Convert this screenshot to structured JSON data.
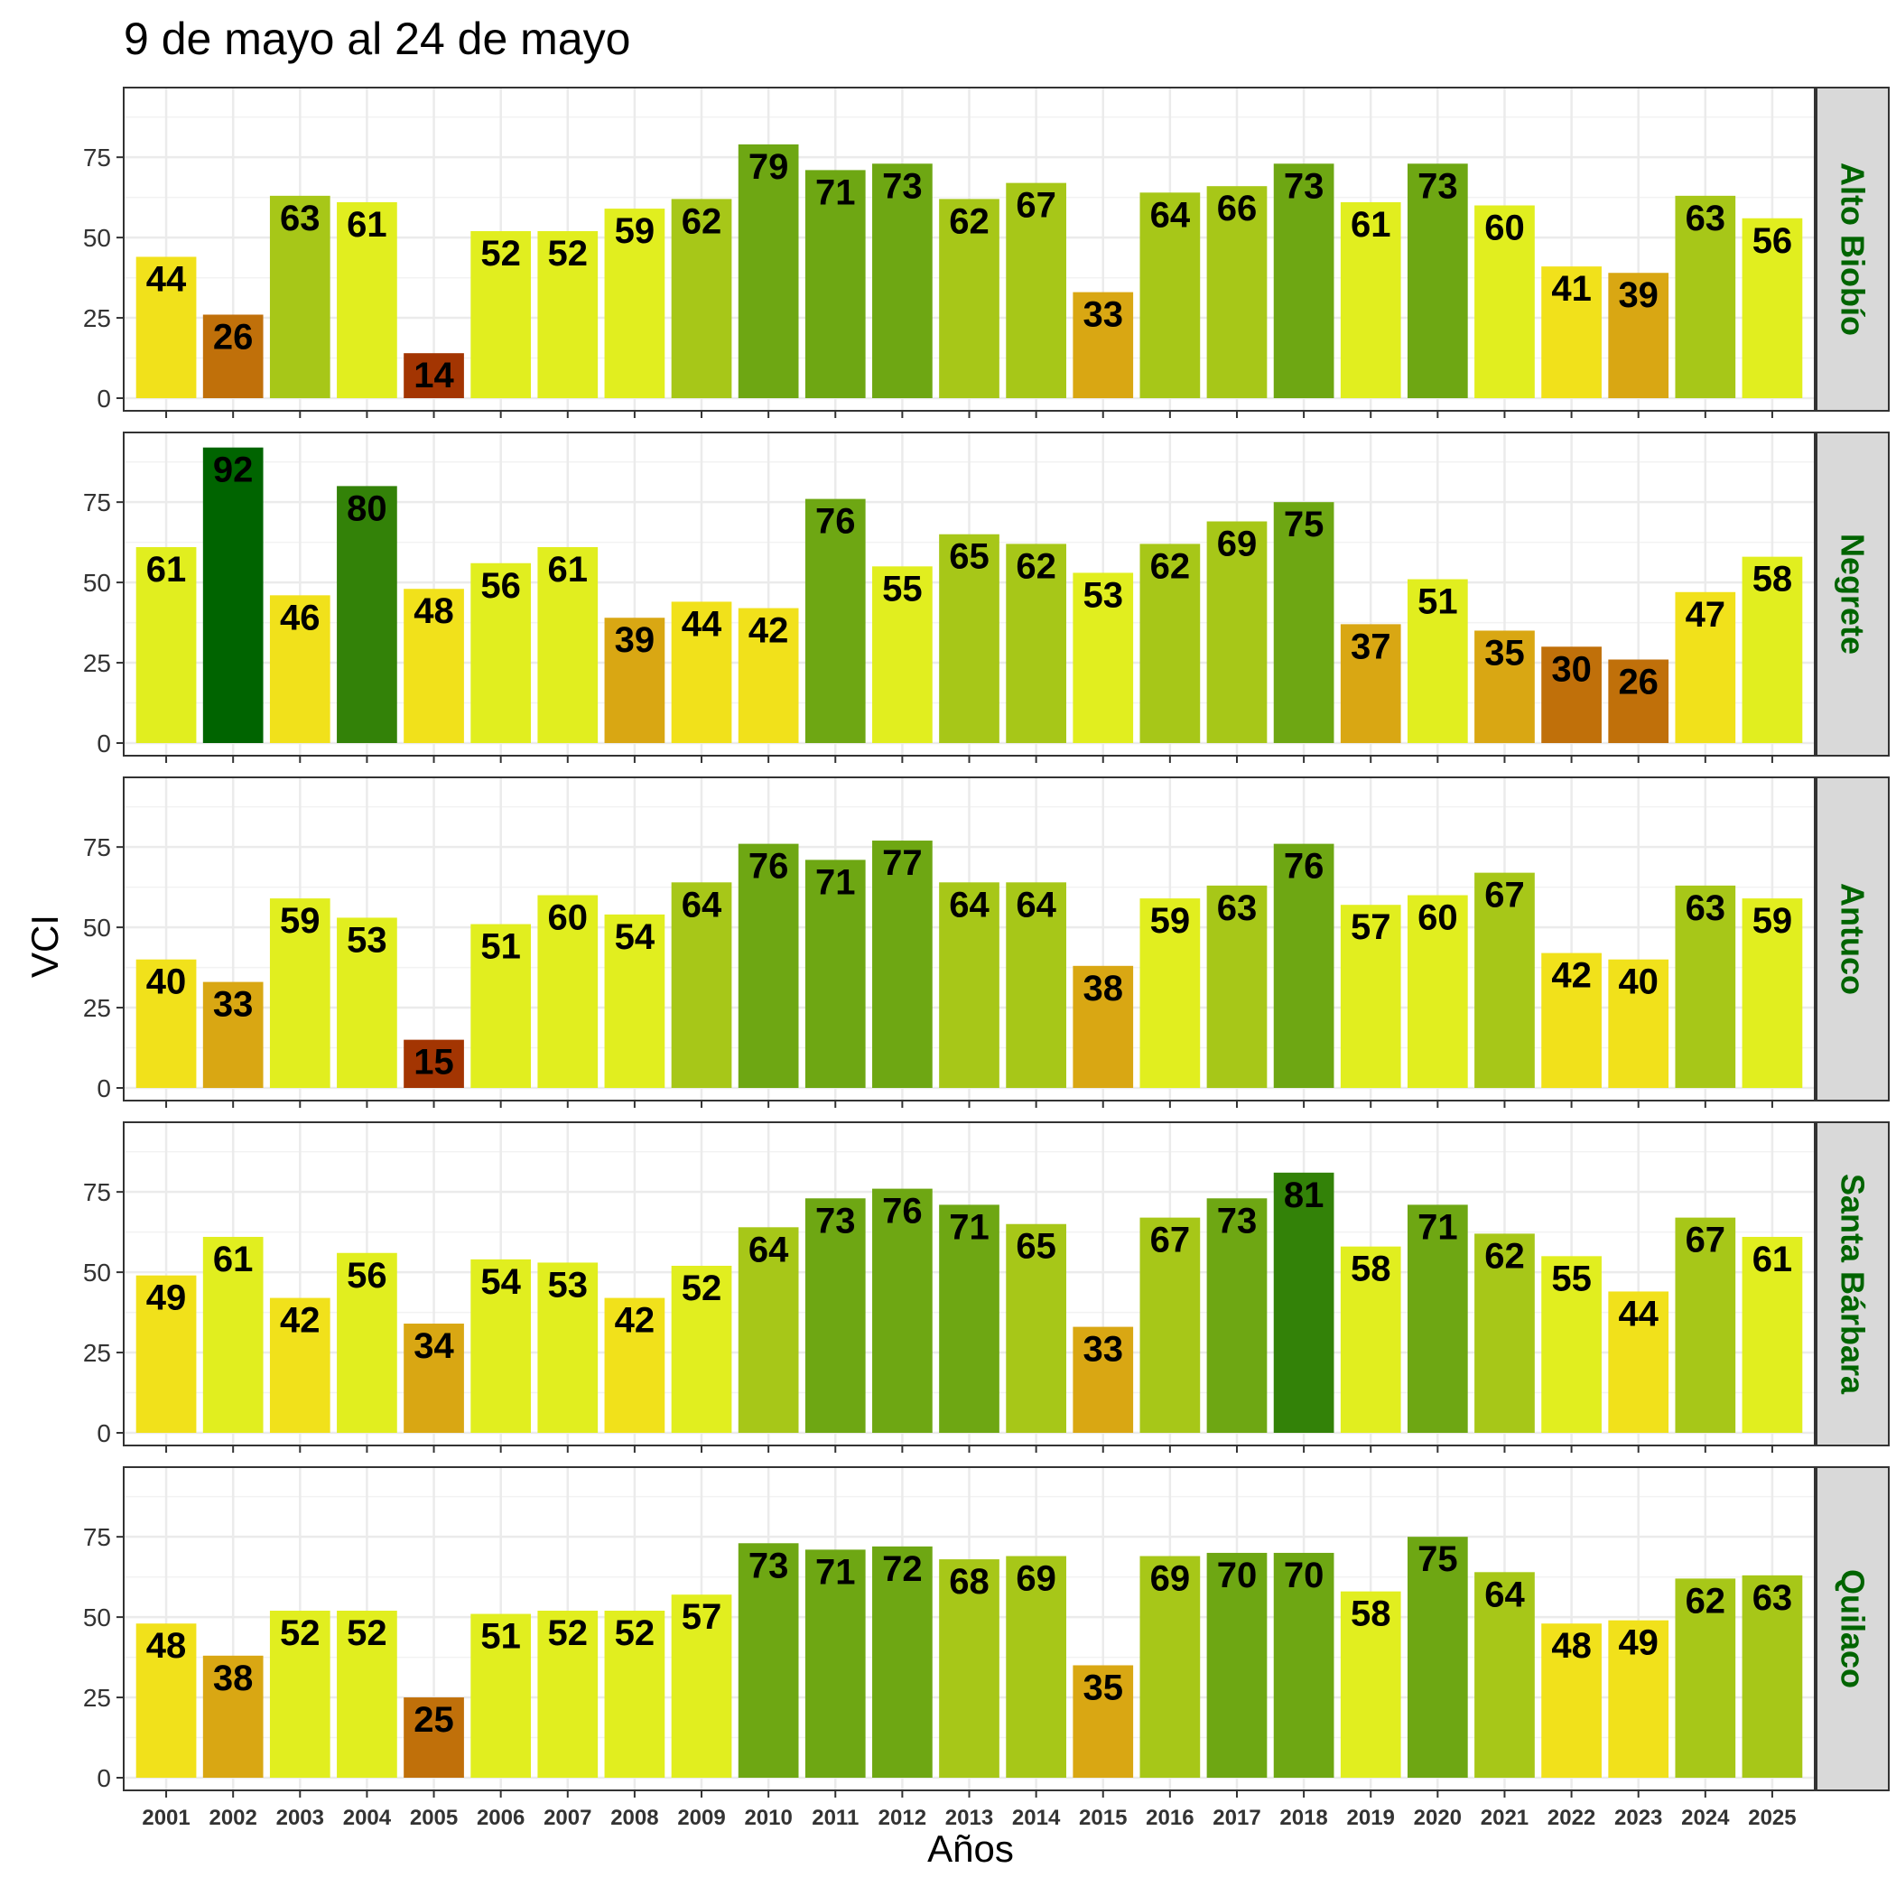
{
  "chart_data": {
    "type": "bar",
    "title": "9 de mayo al 24 de mayo",
    "xlabel": "Años",
    "ylabel": "VCI",
    "ylim": [
      0,
      95
    ],
    "y_ticks": [
      "0",
      "25",
      "50",
      "75"
    ],
    "grid": true,
    "facet_layout": "rows",
    "categories": [
      "2001",
      "2002",
      "2003",
      "2004",
      "2005",
      "2006",
      "2007",
      "2008",
      "2009",
      "2010",
      "2011",
      "2012",
      "2013",
      "2014",
      "2015",
      "2016",
      "2017",
      "2018",
      "2019",
      "2020",
      "2021",
      "2022",
      "2023",
      "2024",
      "2025"
    ],
    "color_scale": [
      {
        "min": 0,
        "color": "#a33502"
      },
      {
        "min": 20,
        "color": "#c0700a"
      },
      {
        "min": 32,
        "color": "#d9a713"
      },
      {
        "min": 40,
        "color": "#f1e11b"
      },
      {
        "min": 50,
        "color": "#e1ee1f"
      },
      {
        "min": 62,
        "color": "#a7c718"
      },
      {
        "min": 70,
        "color": "#6ea713"
      },
      {
        "min": 80,
        "color": "#338208"
      },
      {
        "min": 85,
        "color": "#006400"
      }
    ],
    "series": [
      {
        "name": "Alto Biobío",
        "values": [
          44,
          26,
          63,
          61,
          14,
          52,
          52,
          59,
          62,
          79,
          71,
          73,
          62,
          67,
          33,
          64,
          66,
          73,
          61,
          73,
          60,
          41,
          39,
          63,
          56
        ]
      },
      {
        "name": "Negrete",
        "values": [
          61,
          92,
          46,
          80,
          48,
          56,
          61,
          39,
          44,
          42,
          76,
          55,
          65,
          62,
          53,
          62,
          69,
          75,
          37,
          51,
          35,
          30,
          26,
          47,
          58
        ]
      },
      {
        "name": "Antuco",
        "values": [
          40,
          33,
          59,
          53,
          15,
          51,
          60,
          54,
          64,
          76,
          71,
          77,
          64,
          64,
          38,
          59,
          63,
          76,
          57,
          60,
          67,
          42,
          40,
          63,
          59
        ]
      },
      {
        "name": "Santa Bárbara",
        "values": [
          49,
          61,
          42,
          56,
          34,
          54,
          53,
          42,
          52,
          64,
          73,
          76,
          71,
          65,
          33,
          67,
          73,
          81,
          58,
          71,
          62,
          55,
          44,
          67,
          61
        ]
      },
      {
        "name": "Quilaco",
        "values": [
          48,
          38,
          52,
          52,
          25,
          51,
          52,
          52,
          57,
          73,
          71,
          72,
          68,
          69,
          35,
          69,
          70,
          70,
          58,
          75,
          64,
          48,
          49,
          62,
          63
        ]
      }
    ]
  }
}
